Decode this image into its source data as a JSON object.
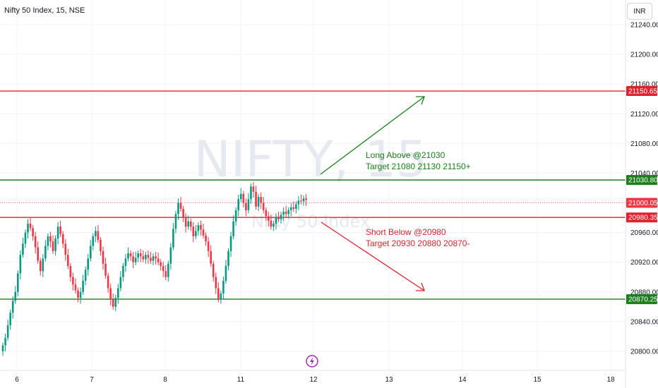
{
  "header": {
    "title": "Nifty 50 Index, 15, NSE",
    "currency": "INR"
  },
  "watermark": {
    "symbol": "NIFTY, 15",
    "description": "Nifty 50 Index"
  },
  "colors": {
    "up": "#089981",
    "down": "#f23645",
    "long_line": "#1b7d1b",
    "short_line": "#e0212f",
    "long_text": "#1b7d1b",
    "short_text": "#e0212f"
  },
  "chart_data": {
    "type": "candlestick",
    "title": "Nifty 50 Index, 15, NSE",
    "ylim": [
      20785,
      21265
    ],
    "y_ticks": [
      "21240.00",
      "21200.00",
      "21160.00",
      "21120.00",
      "21080.00",
      "21040.00",
      "21000.00",
      "20960.00",
      "20920.00",
      "20880.00",
      "20840.00",
      "20800.00"
    ],
    "x_ticks": [
      "6",
      "7",
      "8",
      "11",
      "12",
      "13",
      "14",
      "15",
      "18"
    ],
    "grid": true,
    "levels": [
      {
        "label": "21150.65",
        "value": 21150.65,
        "color": "#e0212f"
      },
      {
        "label": "21030.80",
        "value": 21030.8,
        "color": "#1b7d1b"
      },
      {
        "label": "21000.05",
        "value": 21000.05,
        "color": "#f23645",
        "dotted": true
      },
      {
        "label": "20980.35",
        "value": 20980.35,
        "color": "#e0212f"
      },
      {
        "label": "20870.25",
        "value": 20870.25,
        "color": "#1b7d1b"
      }
    ],
    "annotations": [
      {
        "id": "long",
        "lines": [
          "Long Above @21030",
          "Target 21080 21130 21150+"
        ]
      },
      {
        "id": "short",
        "lines": [
          "Short Below @20980",
          "Target 20930 20880 20870-"
        ]
      }
    ],
    "closes": [
      20808,
      20818,
      20835,
      20852,
      20868,
      20880,
      20905,
      20930,
      20945,
      20960,
      20972,
      20966,
      20955,
      20940,
      20922,
      20908,
      20925,
      20942,
      20955,
      20948,
      20935,
      20952,
      20968,
      20958,
      20945,
      20930,
      20915,
      20900,
      20890,
      20882,
      20872,
      20880,
      20895,
      20910,
      20925,
      20942,
      20955,
      20962,
      20950,
      20935,
      20918,
      20902,
      20885,
      20870,
      20860,
      20872,
      20885,
      20900,
      20915,
      20925,
      20932,
      20928,
      20920,
      20926,
      20932,
      20928,
      20924,
      20930,
      20926,
      20922,
      20928,
      20925,
      20920,
      20915,
      20908,
      20900,
      20918,
      20940,
      20965,
      20985,
      21000,
      20992,
      20980,
      20968,
      20975,
      20968,
      20955,
      20962,
      20970,
      20964,
      20956,
      20948,
      20935,
      20918,
      20900,
      20885,
      20870,
      20878,
      20895,
      20915,
      20935,
      20955,
      20975,
      20990,
      21005,
      21012,
      21000,
      20990,
      21005,
      21022,
      21015,
      20995,
      21008,
      21000,
      20990,
      20982,
      20976,
      20968,
      20972,
      20980,
      20978,
      20984,
      20988,
      20985,
      20990,
      20994,
      20992,
      20998,
      21003,
      21002,
      21006,
      21004
    ]
  }
}
